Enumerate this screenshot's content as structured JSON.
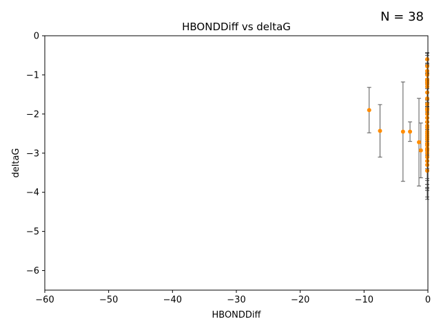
{
  "chart_data": {
    "type": "scatter",
    "title": "HBONDDiff vs deltaG",
    "xlabel": "HBONDDiff",
    "ylabel": "deltaG",
    "annotation": "N = 38",
    "xlim": [
      -60,
      0
    ],
    "ylim": [
      -6.5,
      0
    ],
    "xticks": [
      -60,
      -50,
      -40,
      -30,
      -20,
      -10,
      0
    ],
    "yticks": [
      -6,
      -5,
      -4,
      -3,
      -2,
      -1,
      0
    ],
    "xtick_labels": [
      "−60",
      "−50",
      "−40",
      "−30",
      "−20",
      "−10",
      "0"
    ],
    "ytick_labels": [
      "−6",
      "−5",
      "−4",
      "−3",
      "−2",
      "−1",
      "0"
    ],
    "grid": false,
    "marker_color": "#ff8c00",
    "errorbar_color": "#555555",
    "points": [
      {
        "x": -9.2,
        "y": -1.9,
        "err": 0.58
      },
      {
        "x": -7.5,
        "y": -2.43,
        "err": 0.67
      },
      {
        "x": -3.9,
        "y": -2.45,
        "err": 1.27
      },
      {
        "x": -2.8,
        "y": -2.45,
        "err": 0.25
      },
      {
        "x": -1.4,
        "y": -2.72,
        "err": 1.12
      },
      {
        "x": -1.1,
        "y": -2.93,
        "err": 0.7
      },
      {
        "x": -0.1,
        "y": -0.78,
        "err": 0.35
      },
      {
        "x": -0.1,
        "y": -1.12,
        "err": 0.5
      },
      {
        "x": -0.1,
        "y": -1.17,
        "err": 0.45
      },
      {
        "x": -0.1,
        "y": -1.22,
        "err": 0.6
      },
      {
        "x": -0.1,
        "y": -1.87,
        "err": 0.9
      },
      {
        "x": -0.1,
        "y": -1.9,
        "err": 0.75
      },
      {
        "x": -0.1,
        "y": -2.1,
        "err": 0.95
      },
      {
        "x": -0.1,
        "y": -2.35,
        "err": 1.1
      },
      {
        "x": -0.1,
        "y": -2.45,
        "err": 1.25
      },
      {
        "x": -0.1,
        "y": -2.55,
        "err": 0.9
      },
      {
        "x": -0.1,
        "y": -2.65,
        "err": 1.3
      },
      {
        "x": -0.1,
        "y": -2.88,
        "err": 1.0
      },
      {
        "x": -0.1,
        "y": -2.92,
        "err": 1.2
      },
      {
        "x": -0.1,
        "y": -3.2,
        "err": 0.98
      },
      {
        "x": 0.0,
        "y": -0.6,
        "err": 0.15
      },
      {
        "x": 0.0,
        "y": -0.9,
        "err": 0.4
      },
      {
        "x": 0.0,
        "y": -1.0,
        "err": 0.3
      },
      {
        "x": 0.0,
        "y": -1.3,
        "err": 0.55
      },
      {
        "x": 0.0,
        "y": -1.45,
        "err": 0.5
      },
      {
        "x": 0.0,
        "y": -1.6,
        "err": 0.7
      },
      {
        "x": 0.0,
        "y": -1.75,
        "err": 0.65
      },
      {
        "x": 0.0,
        "y": -2.0,
        "err": 0.8
      },
      {
        "x": 0.0,
        "y": -2.2,
        "err": 0.85
      },
      {
        "x": 0.0,
        "y": -2.3,
        "err": 0.6
      },
      {
        "x": 0.0,
        "y": -2.5,
        "err": 0.7
      },
      {
        "x": 0.0,
        "y": -2.6,
        "err": 0.5
      },
      {
        "x": 0.0,
        "y": -2.75,
        "err": 0.9
      },
      {
        "x": 0.0,
        "y": -2.8,
        "err": 0.6
      },
      {
        "x": 0.0,
        "y": -3.0,
        "err": 0.8
      },
      {
        "x": 0.0,
        "y": -3.1,
        "err": 0.7
      },
      {
        "x": 0.0,
        "y": -3.3,
        "err": 0.6
      },
      {
        "x": 0.0,
        "y": -3.45,
        "err": 0.5
      }
    ]
  }
}
